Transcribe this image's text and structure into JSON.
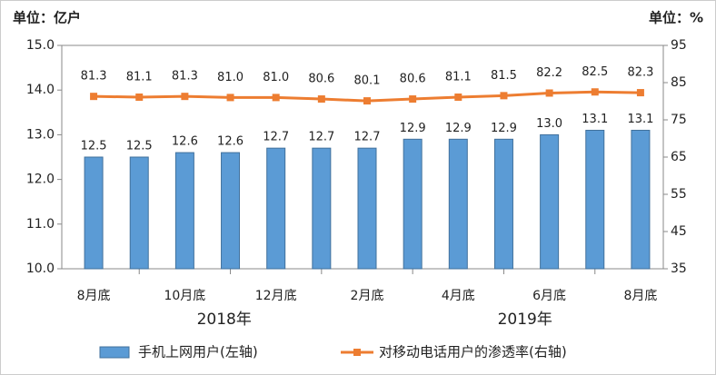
{
  "chart_data": {
    "type": "bar-line",
    "left_unit": "单位：亿户",
    "right_unit": "单位：%",
    "categories": [
      "8月底",
      null,
      "10月底",
      null,
      "12月底",
      null,
      "2月底",
      null,
      "4月底",
      null,
      "6月底",
      null,
      "8月底"
    ],
    "year_labels": [
      "2018年",
      "2019年"
    ],
    "series": [
      {
        "name": "手机上网用户(左轴)",
        "type": "bar",
        "color": "#5b9bd5",
        "values": [
          12.5,
          12.5,
          12.6,
          12.6,
          12.7,
          12.7,
          12.7,
          12.9,
          12.9,
          12.9,
          13.0,
          13.1,
          13.1
        ],
        "value_labels": [
          "12.5",
          "12.5",
          "12.6",
          "12.6",
          "12.7",
          "12.7",
          "12.7",
          "12.9",
          "12.9",
          "12.9",
          "13.0",
          "13.1",
          "13.1"
        ]
      },
      {
        "name": "对移动电话用户的渗透率(右轴)",
        "type": "line",
        "axis": "y2",
        "color": "#ed7d31",
        "values": [
          81.3,
          81.1,
          81.3,
          81.0,
          81.0,
          80.6,
          80.1,
          80.6,
          81.1,
          81.5,
          82.2,
          82.5,
          82.3
        ],
        "value_labels": [
          "81.3",
          "81.1",
          "81.3",
          "81.0",
          "81.0",
          "80.6",
          "80.1",
          "80.6",
          "81.1",
          "81.5",
          "82.2",
          "82.5",
          "82.3"
        ]
      }
    ],
    "ylim": [
      10,
      15
    ],
    "yticks": [
      {
        "value": 10,
        "label": "10.0"
      },
      {
        "value": 11,
        "label": "11.0"
      },
      {
        "value": 12,
        "label": "12.0"
      },
      {
        "value": 13,
        "label": "13.0"
      },
      {
        "value": 14,
        "label": "14.0"
      },
      {
        "value": 15,
        "label": "15.0"
      }
    ],
    "y2lim": [
      35,
      95
    ],
    "y2ticks": [
      35,
      45,
      55,
      65,
      75,
      85,
      95
    ],
    "grid": false
  }
}
